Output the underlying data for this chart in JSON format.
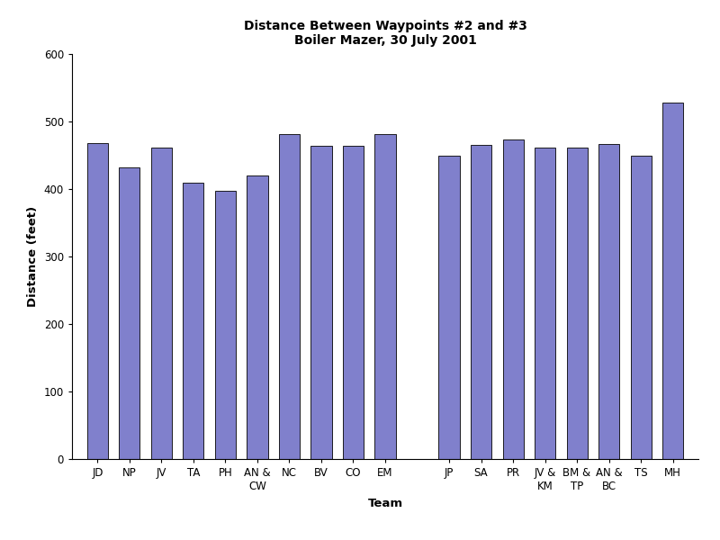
{
  "title_line1": "Distance Between Waypoints #2 and #3",
  "title_line2": "Boiler Mazer, 30 July 2001",
  "categories": [
    "JD",
    "NP",
    "JV",
    "TA",
    "PH",
    "AN &\nCW",
    "NC",
    "BV",
    "CO",
    "EM",
    "",
    "JP",
    "SA",
    "PR",
    "JV &\nKM",
    "BM &\nTP",
    "AN &\nBC",
    "TS",
    "MH"
  ],
  "values": [
    468,
    432,
    462,
    410,
    397,
    420,
    481,
    464,
    464,
    482,
    null,
    449,
    466,
    473,
    461,
    461,
    467,
    450,
    528
  ],
  "bar_color": "#8080cc",
  "bar_edge_color": "#000000",
  "xlabel": "Team",
  "ylabel": "Distance (feet)",
  "ylim": [
    0,
    600
  ],
  "yticks": [
    0,
    100,
    200,
    300,
    400,
    500,
    600
  ],
  "title_fontsize": 10,
  "axis_label_fontsize": 9.5,
  "tick_fontsize": 8.5
}
